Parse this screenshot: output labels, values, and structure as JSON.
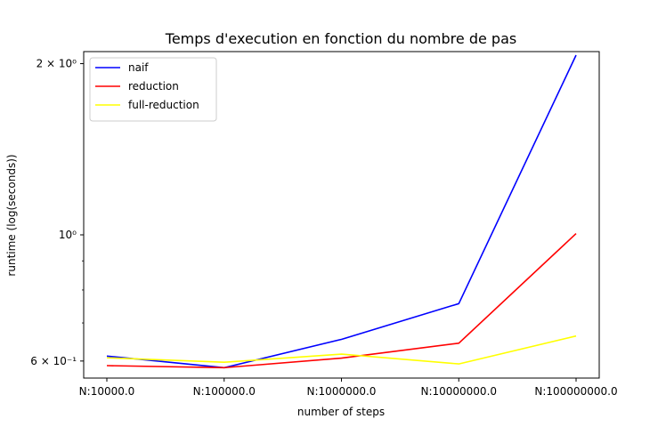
{
  "chart_data": {
    "type": "line",
    "title": "Temps d'execution en fonction du nombre de pas",
    "xlabel": "number of steps",
    "ylabel": "runtime (log(seconds))",
    "yscale": "log",
    "ylim": [
      0.56,
      2.1
    ],
    "categories": [
      "N:10000.0",
      "N:100000.0",
      "N:1000000.0",
      "N:10000000.0",
      "N:100000000.0"
    ],
    "y_ticks": [
      {
        "value": 2.0,
        "label": "2 × 10⁰"
      },
      {
        "value": 1.0,
        "label": "10⁰"
      },
      {
        "value": 0.6,
        "label": "6 × 10⁻¹"
      }
    ],
    "y_minor_ticks": [
      0.7,
      0.8,
      0.9
    ],
    "legend_position": "top-left",
    "grid": false,
    "series": [
      {
        "name": "naif",
        "color": "#0000ff",
        "values": [
          0.612,
          0.584,
          0.655,
          0.757,
          2.07
        ]
      },
      {
        "name": "reduction",
        "color": "#ff0000",
        "values": [
          0.589,
          0.584,
          0.607,
          0.645,
          1.005
        ]
      },
      {
        "name": "full-reduction",
        "color": "#ffff00",
        "values": [
          0.608,
          0.597,
          0.617,
          0.593,
          0.664
        ]
      }
    ]
  }
}
